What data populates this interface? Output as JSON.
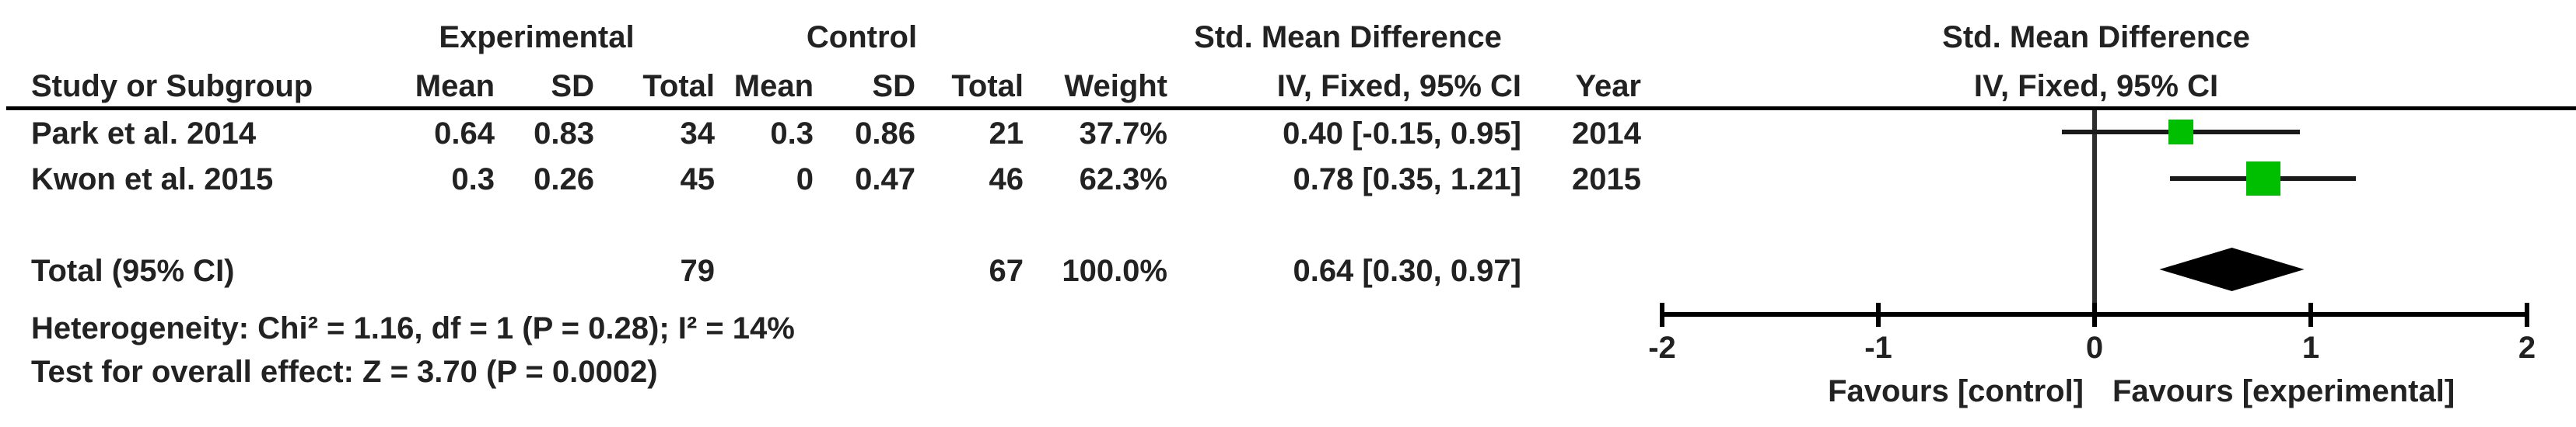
{
  "table": {
    "group_headers": {
      "experimental": "Experimental",
      "control": "Control",
      "smd": "Std. Mean Difference"
    },
    "col_headers": {
      "study": "Study or Subgroup",
      "mean": "Mean",
      "sd": "SD",
      "total": "Total",
      "weight": "Weight",
      "ci": "IV, Fixed, 95% CI",
      "year": "Year"
    },
    "rows": [
      {
        "study": "Park et al. 2014",
        "exp_mean": "0.64",
        "exp_sd": "0.83",
        "exp_total": "34",
        "ctrl_mean": "0.3",
        "ctrl_sd": "0.86",
        "ctrl_total": "21",
        "weight": "37.7%",
        "ci_text": "0.40 [-0.15, 0.95]",
        "year": "2014"
      },
      {
        "study": "Kwon et al. 2015",
        "exp_mean": "0.3",
        "exp_sd": "0.26",
        "exp_total": "45",
        "ctrl_mean": "0",
        "ctrl_sd": "0.47",
        "ctrl_total": "46",
        "weight": "62.3%",
        "ci_text": "0.78 [0.35, 1.21]",
        "year": "2015"
      }
    ],
    "total_row": {
      "label": "Total (95% CI)",
      "exp_total": "79",
      "ctrl_total": "67",
      "weight": "100.0%",
      "ci_text": "0.64 [0.30, 0.97]"
    },
    "footer": {
      "heterogeneity": "Heterogeneity: Chi² = 1.16, df = 1 (P = 0.28); I² = 14%",
      "overall_effect": "Test for overall effect: Z = 3.70 (P = 0.0002)"
    }
  },
  "plot": {
    "header_line1": "Std. Mean Difference",
    "header_line2": "IV, Fixed, 95% CI",
    "axis_ticks": [
      "-2",
      "-1",
      "0",
      "1",
      "2"
    ],
    "favours_left": "Favours [control]",
    "favours_right": "Favours [experimental]",
    "marker_color": "#00bf00",
    "line_color": "#1a1a1a"
  },
  "chart_data": {
    "type": "forest",
    "title": "Std. Mean Difference, IV, Fixed, 95% CI",
    "axis_range": [
      -2,
      2
    ],
    "studies": [
      {
        "name": "Park et al. 2014",
        "smd": 0.4,
        "ci_low": -0.15,
        "ci_high": 0.95,
        "weight_pct": 37.7,
        "year": 2014
      },
      {
        "name": "Kwon et al. 2015",
        "smd": 0.78,
        "ci_low": 0.35,
        "ci_high": 1.21,
        "weight_pct": 62.3,
        "year": 2015
      }
    ],
    "total": {
      "label": "Total (95% CI)",
      "smd": 0.64,
      "ci_low": 0.3,
      "ci_high": 0.97
    },
    "heterogeneity": {
      "chi2": 1.16,
      "df": 1,
      "p": 0.28,
      "i2_pct": 14
    },
    "overall_effect": {
      "z": 3.7,
      "p": 0.0002
    },
    "xlabel_left": "Favours [control]",
    "xlabel_right": "Favours [experimental]"
  }
}
